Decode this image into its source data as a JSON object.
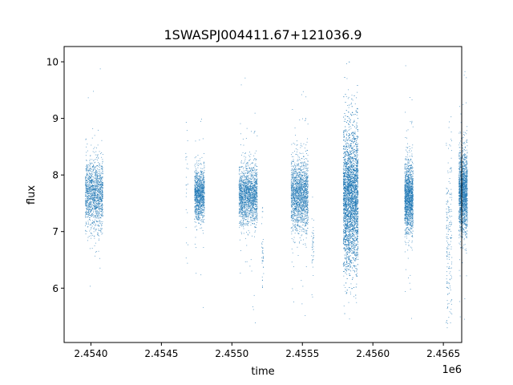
{
  "chart_data": {
    "type": "scatter",
    "title": "1SWASPJ004411.67+121036.9",
    "xlabel": "time",
    "ylabel": "flux",
    "x_offset_label": "1e6",
    "xlim": [
      2453810,
      2456630
    ],
    "ylim": [
      5.04,
      10.27
    ],
    "xticks": [
      2454000,
      2454500,
      2455000,
      2455500,
      2456000,
      2456500
    ],
    "xtick_labels": [
      "2.4540",
      "2.4545",
      "2.4550",
      "2.4555",
      "2.4560",
      "2.4565"
    ],
    "yticks": [
      6,
      7,
      8,
      9,
      10
    ],
    "ytick_labels": [
      "6",
      "7",
      "8",
      "9",
      "10"
    ],
    "grid": false,
    "marker_color": "#1f77b4",
    "observing_seasons": [
      {
        "t_start": 2453960,
        "t_end": 2454085,
        "flux_mean": 7.65,
        "flux_std": 0.3,
        "n": 1400
      },
      {
        "t_start": 2454670,
        "t_end": 2454690,
        "flux_mean": 7.6,
        "flux_std": 0.8,
        "n": 25
      },
      {
        "t_start": 2454735,
        "t_end": 2454805,
        "flux_mean": 7.65,
        "flux_std": 0.22,
        "n": 1100
      },
      {
        "t_start": 2455050,
        "t_end": 2455180,
        "flux_mean": 7.65,
        "flux_std": 0.25,
        "n": 1700
      },
      {
        "t_start": 2455210,
        "t_end": 2455225,
        "flux_mean": 6.6,
        "flux_std": 0.3,
        "n": 40
      },
      {
        "t_start": 2455420,
        "t_end": 2455540,
        "flux_mean": 7.65,
        "flux_std": 0.3,
        "n": 1700
      },
      {
        "t_start": 2455565,
        "t_end": 2455580,
        "flux_mean": 6.7,
        "flux_std": 0.4,
        "n": 40
      },
      {
        "t_start": 2455790,
        "t_end": 2455895,
        "flux_mean": 7.6,
        "flux_std": 0.6,
        "n": 4000
      },
      {
        "t_start": 2456225,
        "t_end": 2456285,
        "flux_mean": 7.6,
        "flux_std": 0.3,
        "n": 1500
      },
      {
        "t_start": 2456520,
        "t_end": 2456560,
        "flux_mean": 7.0,
        "flux_std": 0.8,
        "n": 200
      },
      {
        "t_start": 2456610,
        "t_end": 2456670,
        "flux_mean": 7.7,
        "flux_std": 0.35,
        "n": 1700
      }
    ]
  }
}
